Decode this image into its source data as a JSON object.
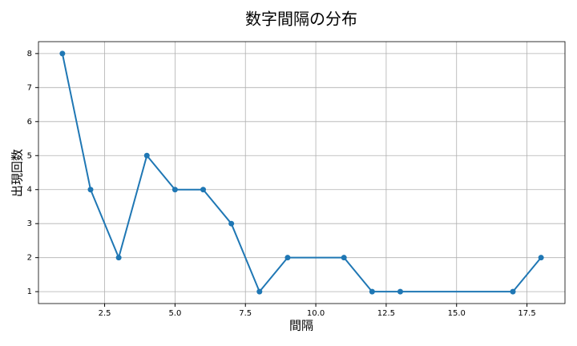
{
  "chart_data": {
    "type": "line",
    "title": "数字間隔の分布",
    "x_label": "間隔",
    "y_label": "出現回数",
    "x": [
      1,
      2,
      3,
      4,
      5,
      6,
      7,
      8,
      9,
      11,
      12,
      13,
      17,
      18
    ],
    "series": [
      {
        "name": "出現回数",
        "color": "#1f77b4",
        "values": [
          8,
          4,
          2,
          5,
          4,
          4,
          3,
          1,
          2,
          2,
          1,
          1,
          1,
          2
        ]
      }
    ],
    "xlim": [
      0.15,
      18.85
    ],
    "ylim": [
      0.65,
      8.35
    ],
    "xticks": [
      2.5,
      {
        "value": 5,
        "label": "5.0"
      },
      7.5,
      {
        "value": 10,
        "label": "10.0"
      },
      12.5,
      {
        "value": 15,
        "label": "15.0"
      },
      17.5
    ],
    "yticks": [
      1,
      2,
      3,
      4,
      5,
      6,
      7,
      8
    ],
    "grid": true
  }
}
